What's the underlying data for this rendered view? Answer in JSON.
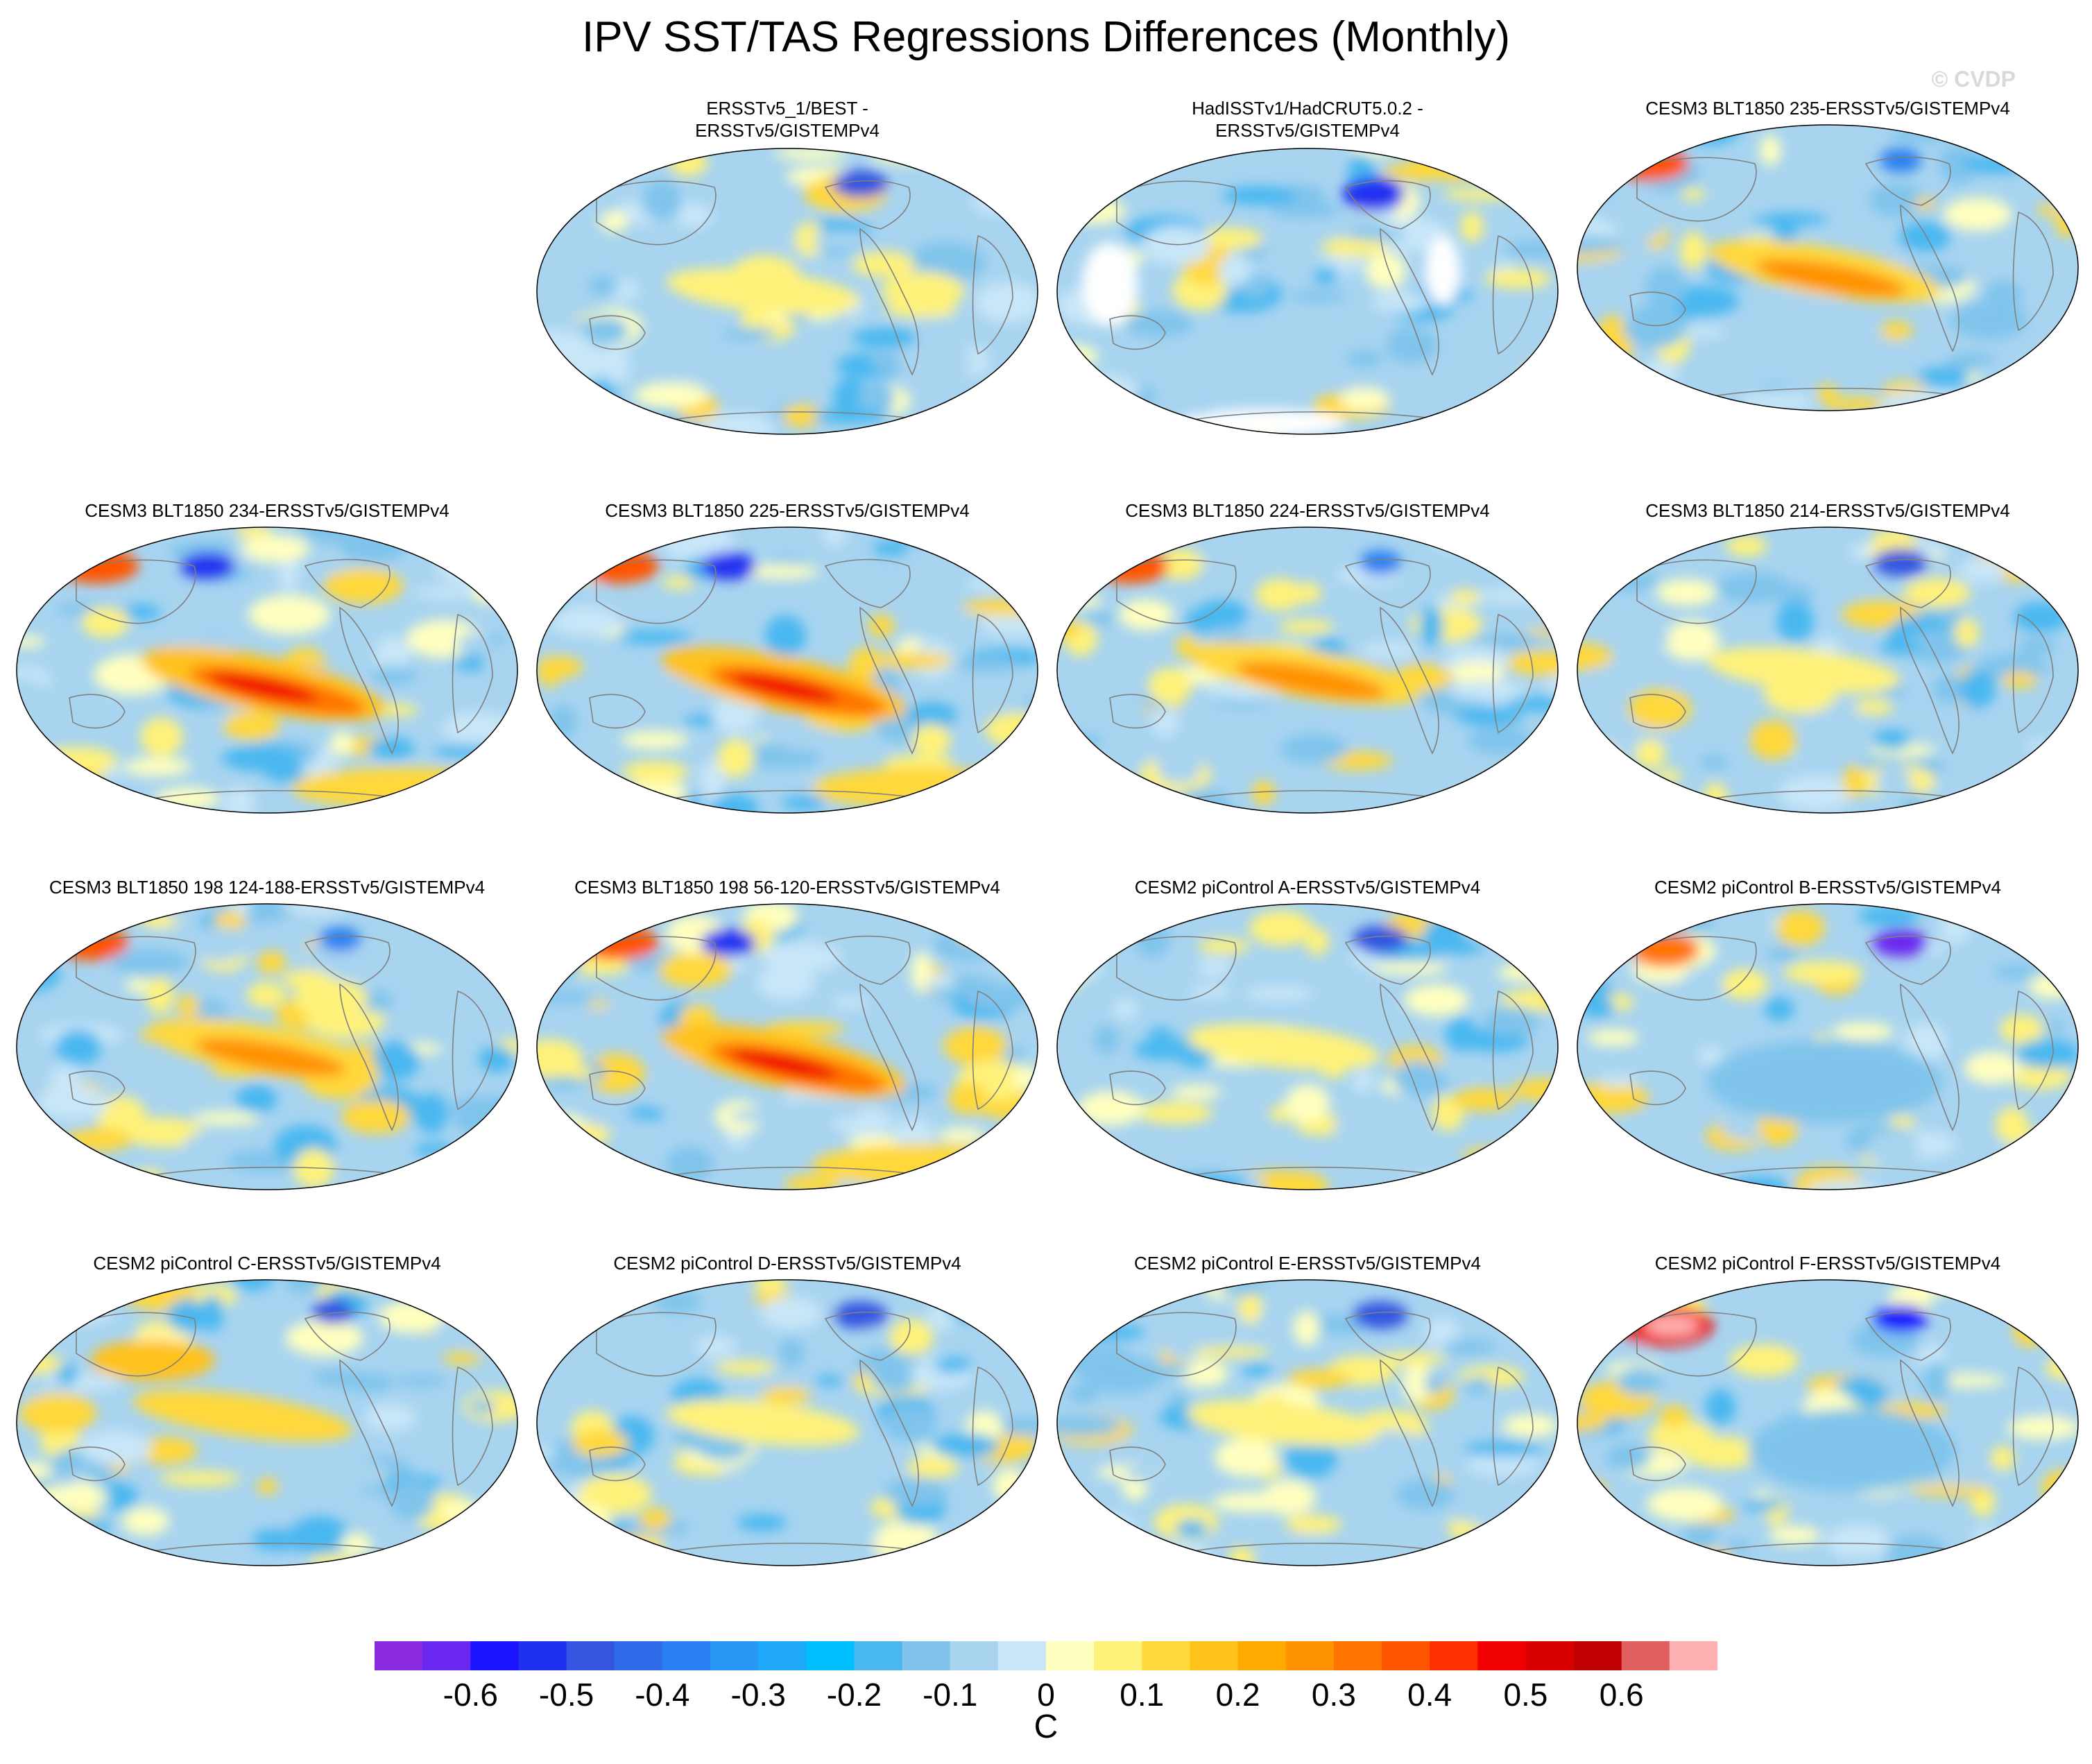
{
  "title": "IPV SST/TAS Regressions Differences (Monthly)",
  "watermark": "© CVDP",
  "colors": {
    "land_outline": "#808080",
    "map_border": "#000000"
  },
  "panels": [
    {
      "title": "ERSSTv5_1/BEST -\nERSSTv5/GISTEMPv4",
      "pattern": "mixed-weak"
    },
    {
      "title": "HadISSTv1/HadCRUT5.0.2 -\nERSSTv5/GISTEMPv4",
      "pattern": "mixed-weak-gaps"
    },
    {
      "title": "CESM3 BLT1850 235-ERSSTv5/GISTEMPv4",
      "pattern": "warm-pacific"
    },
    {
      "title": "CESM3 BLT1850 234-ERSSTv5/GISTEMPv4",
      "pattern": "strong-warm-pacific"
    },
    {
      "title": "CESM3 BLT1850 225-ERSSTv5/GISTEMPv4",
      "pattern": "strong-warm-pacific"
    },
    {
      "title": "CESM3 BLT1850 224-ERSSTv5/GISTEMPv4",
      "pattern": "warm-pacific"
    },
    {
      "title": "CESM3 BLT1850 214-ERSSTv5/GISTEMPv4",
      "pattern": "mixed-weak"
    },
    {
      "title": "CESM3 BLT1850 198 124-188-ERSSTv5/GISTEMPv4",
      "pattern": "warm-pacific"
    },
    {
      "title": "CESM3 BLT1850 198 56-120-ERSSTv5/GISTEMPv4",
      "pattern": "strong-warm-pacific"
    },
    {
      "title": "CESM2 piControl A-ERSSTv5/GISTEMPv4",
      "pattern": "mixed-weak"
    },
    {
      "title": "CESM2 piControl B-ERSSTv5/GISTEMPv4",
      "pattern": "cool"
    },
    {
      "title": "CESM2 piControl C-ERSSTv5/GISTEMPv4",
      "pattern": "warm-weak"
    },
    {
      "title": "CESM2 piControl D-ERSSTv5/GISTEMPv4",
      "pattern": "mixed-weak"
    },
    {
      "title": "CESM2 piControl E-ERSSTv5/GISTEMPv4",
      "pattern": "mixed-weak"
    },
    {
      "title": "CESM2 piControl F-ERSSTv5/GISTEMPv4",
      "pattern": "cool-nw-warm"
    }
  ],
  "colorbar": {
    "unit": "C",
    "labels": [
      "-0.6",
      "-0.5",
      "-0.4",
      "-0.3",
      "-0.2",
      "-0.1",
      "0",
      "0.1",
      "0.2",
      "0.3",
      "0.4",
      "0.5",
      "0.6"
    ],
    "colors": [
      "#8a2be2",
      "#6a28f0",
      "#1a14ff",
      "#2030f0",
      "#3355e0",
      "#2f6ae8",
      "#2a80f0",
      "#2a96f5",
      "#20a8f8",
      "#00bfff",
      "#4ab8f0",
      "#80c4ec",
      "#a8d4f0",
      "#c8e6f8",
      "#ffffbf",
      "#fff27a",
      "#ffd83a",
      "#ffc21a",
      "#ffaa00",
      "#ff9200",
      "#ff7400",
      "#ff5400",
      "#ff3000",
      "#f00000",
      "#d80000",
      "#c00000",
      "#e06060",
      "#ffb0b0"
    ]
  }
}
